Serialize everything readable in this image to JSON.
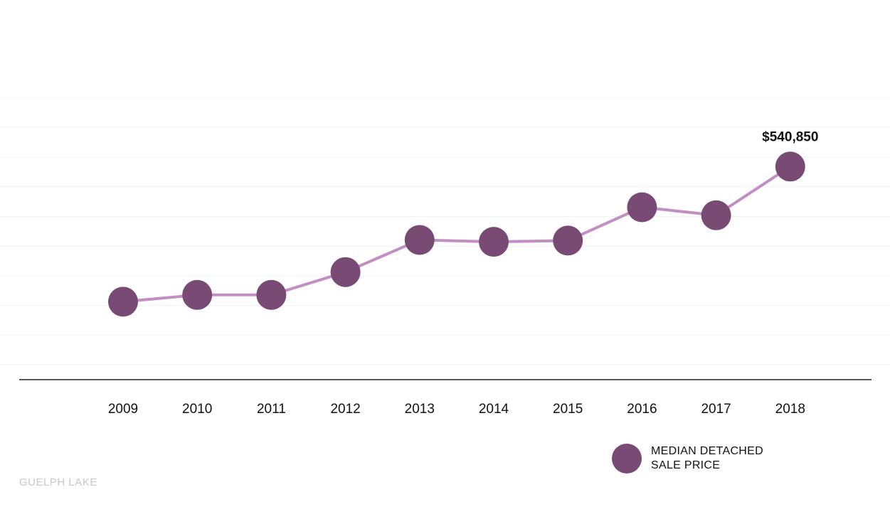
{
  "chart_data": {
    "type": "line",
    "categories": [
      "2009",
      "2010",
      "2011",
      "2012",
      "2013",
      "2014",
      "2015",
      "2016",
      "2017",
      "2018"
    ],
    "series": [
      {
        "name": "MEDIAN DETACHED SALE PRICE",
        "values": [
          322000,
          333000,
          333000,
          370000,
          422000,
          419000,
          421000,
          475000,
          462000,
          540850
        ]
      }
    ],
    "data_labels": [
      {
        "index": 9,
        "text": "$540,850"
      }
    ],
    "ylim": [
      220000,
      700000
    ],
    "grid": true,
    "legend_position": "bottom-right",
    "title": "",
    "xlabel": "",
    "ylabel": ""
  },
  "legend": {
    "line1": "MEDIAN DETACHED",
    "line2": "SALE PRICE"
  },
  "footer": {
    "label": "GUELPH LAKE"
  },
  "colors": {
    "marker": "#784a74",
    "line": "#c18fc3",
    "grid": "#f2f2f2",
    "axis": "#222222",
    "footer_text": "#c8c8c8"
  }
}
